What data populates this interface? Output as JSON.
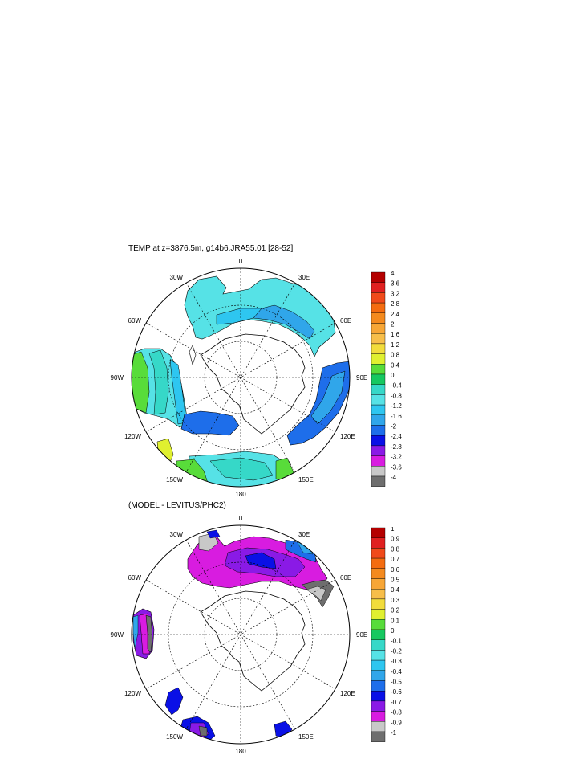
{
  "panel1": {
    "title": "TEMP at z=3876.5m, g14b6.JRA55.01 [28-52]",
    "lon_labels": {
      "top": "0",
      "bottom": "180",
      "left": "90W",
      "right": "90E",
      "ul1": "30W",
      "ul2": "60W",
      "ll1": "120W",
      "ll2": "150W",
      "ur1": "30E",
      "ur2": "60E",
      "lr1": "120E",
      "lr2": "150E"
    },
    "colorbar": {
      "labels": [
        "4",
        "3.6",
        "3.2",
        "2.8",
        "2.4",
        "2",
        "1.6",
        "1.2",
        "0.8",
        "0.4",
        "0",
        "-0.4",
        "-0.8",
        "-1.2",
        "-1.6",
        "-2",
        "-2.4",
        "-2.8",
        "-3.2",
        "-3.6",
        "-4"
      ],
      "colors": [
        "#b40000",
        "#e02020",
        "#f04a1a",
        "#f46c10",
        "#f48a1e",
        "#f7a636",
        "#f7be4a",
        "#f2dc3c",
        "#e0f030",
        "#58dc3a",
        "#16c860",
        "#36d8c8",
        "#56e2e6",
        "#2ec6f0",
        "#30a6ea",
        "#1e6eea",
        "#0a10e6",
        "#8a1ae6",
        "#d81ce0",
        "#c8c8c8",
        "#6e6e6e"
      ]
    }
  },
  "panel2": {
    "title": "(MODEL - LEVITUS/PHC2)",
    "lon_labels": {
      "top": "0",
      "bottom": "180",
      "left": "90W",
      "right": "90E",
      "ul1": "30W",
      "ul2": "60W",
      "ll1": "120W",
      "ll2": "150W",
      "ur1": "30E",
      "ur2": "60E",
      "lr1": "120E",
      "lr2": "150E"
    },
    "colorbar": {
      "labels": [
        "1",
        "0.9",
        "0.8",
        "0.7",
        "0.6",
        "0.5",
        "0.4",
        "0.3",
        "0.2",
        "0.1",
        "0",
        "-0.1",
        "-0.2",
        "-0.3",
        "-0.4",
        "-0.5",
        "-0.6",
        "-0.7",
        "-0.8",
        "-0.9",
        "-1"
      ],
      "colors": [
        "#b40000",
        "#e02020",
        "#f04a1a",
        "#f46c10",
        "#f48a1e",
        "#f7a636",
        "#f7be4a",
        "#f2dc3c",
        "#e0f030",
        "#58dc3a",
        "#16c860",
        "#36d8c8",
        "#56e2e6",
        "#2ec6f0",
        "#30a6ea",
        "#1e6eea",
        "#0a10e6",
        "#8a1ae6",
        "#d81ce0",
        "#c8c8c8",
        "#6e6e6e"
      ]
    }
  }
}
